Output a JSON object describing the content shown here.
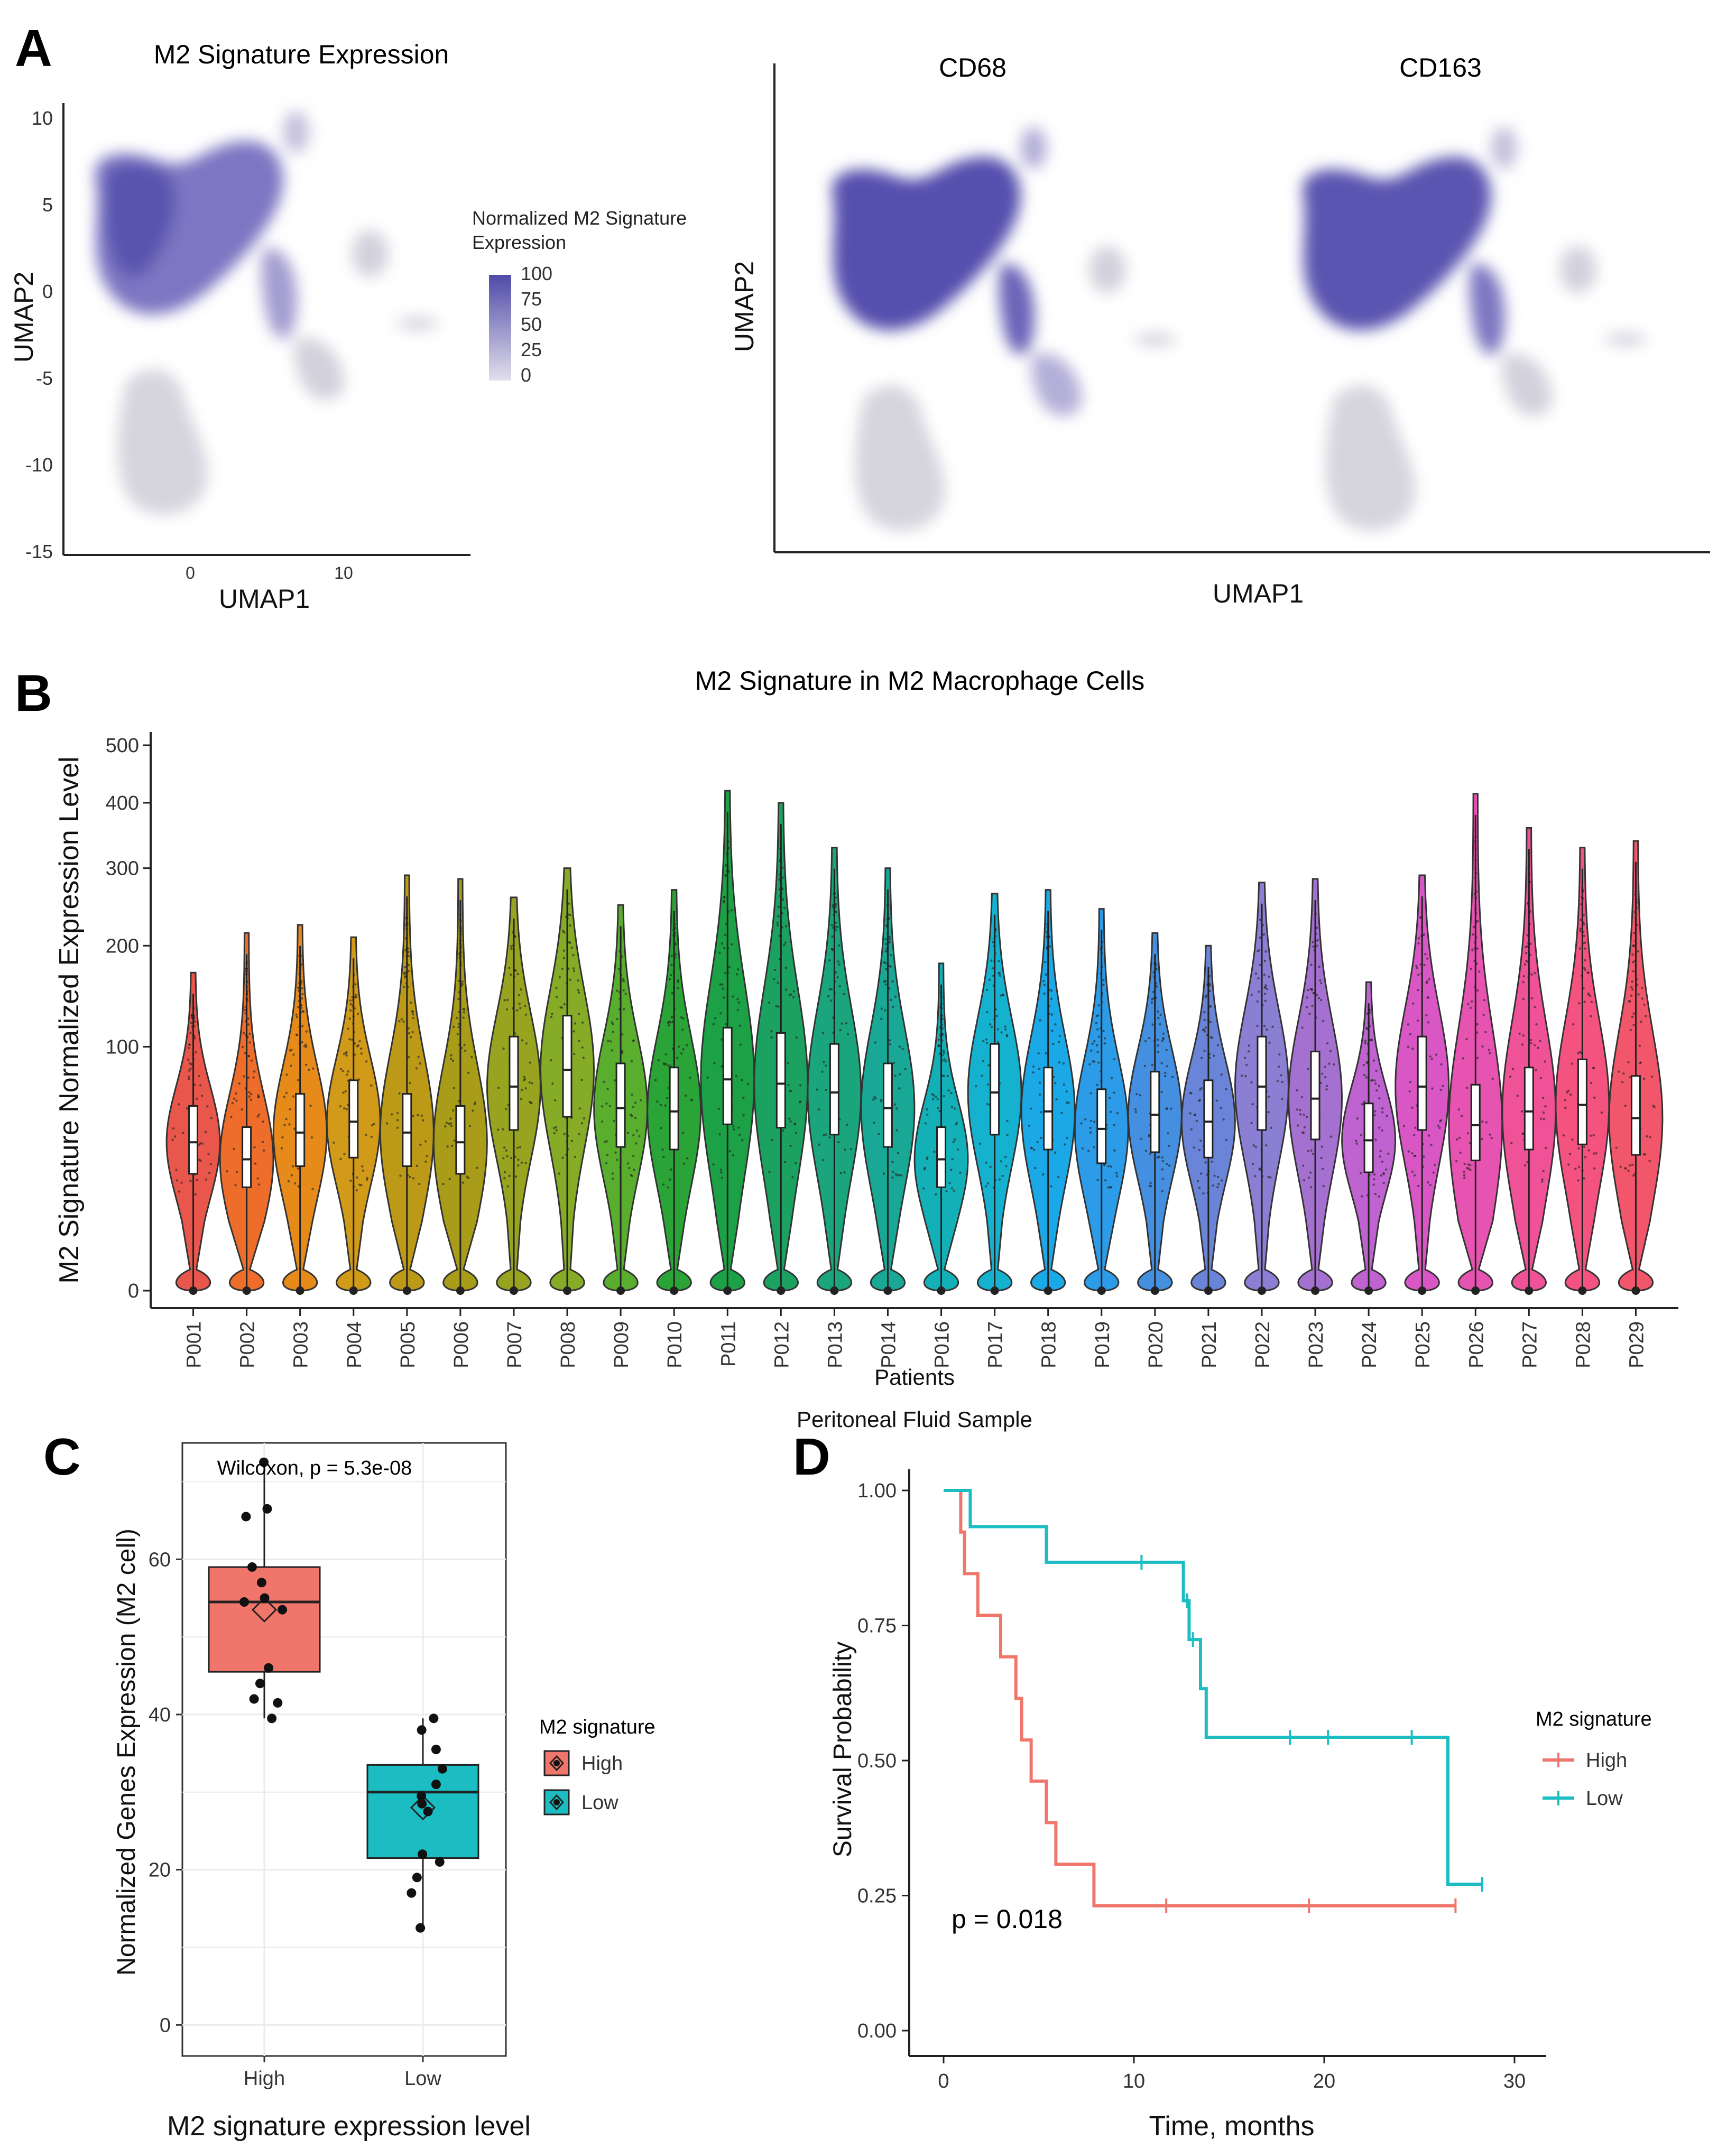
{
  "panel_labels": [
    "A",
    "B",
    "C",
    "D"
  ],
  "chart_data": [
    {
      "id": "A1",
      "type": "scatter",
      "title": "M2 Signature Expression",
      "xlabel": "UMAP1",
      "ylabel": "UMAP2",
      "x_ticks": [
        "0",
        "10"
      ],
      "y_ticks": [
        "10",
        "5",
        "0",
        "-5",
        "-10",
        "-15"
      ],
      "legend_title": "Normalized M2 Signature Expression",
      "legend_ticks": [
        "100",
        "75",
        "50",
        "25",
        "0"
      ],
      "color_low": "#dcd8e8",
      "color_high": "#4e4aa8"
    },
    {
      "id": "A2",
      "type": "scatter",
      "xlabel": "UMAP1",
      "ylabel": "UMAP2",
      "facets": [
        "CD68",
        "CD163"
      ]
    },
    {
      "id": "B",
      "type": "violin",
      "title": "M2 Signature in M2 Macrophage Cells",
      "xlabel": "Patients",
      "caption": "Peritoneal Fluid Sample",
      "ylabel": "M2 Signature Normalized Expression Level",
      "y_scale": "sqrt",
      "y_ticks": [
        "500",
        "400",
        "300",
        "200",
        "100",
        "0"
      ],
      "categories": [
        "P001",
        "P002",
        "P003",
        "P004",
        "P005",
        "P006",
        "P007",
        "P008",
        "P009",
        "P010",
        "P011",
        "P012",
        "P013",
        "P014",
        "P016",
        "P017",
        "P018",
        "P019",
        "P020",
        "P021",
        "P022",
        "P023",
        "P024",
        "P025",
        "P026",
        "P027",
        "P028",
        "P029"
      ],
      "medians": [
        37,
        29,
        42,
        48,
        42,
        37,
        70,
        82,
        56,
        54,
        75,
        72,
        66,
        56,
        29,
        66,
        54,
        44,
        52,
        48,
        70,
        62,
        38,
        70,
        46,
        54,
        58,
        50
      ],
      "max_values": [
        170,
        215,
        225,
        210,
        290,
        285,
        260,
        300,
        250,
        270,
        420,
        400,
        330,
        300,
        180,
        265,
        270,
        245,
        215,
        200,
        280,
        285,
        160,
        290,
        415,
        360,
        330,
        340
      ],
      "colors": [
        "#e8564c",
        "#ee6d2a",
        "#e68a1a",
        "#d19b19",
        "#bc9a18",
        "#a89c18",
        "#98a31f",
        "#86ab26",
        "#5aae2e",
        "#2aa437",
        "#1da146",
        "#1ca260",
        "#1ba57c",
        "#19a896",
        "#14b0b8",
        "#14b2cf",
        "#1aa9e6",
        "#2c9ce8",
        "#448fe0",
        "#6a84d8",
        "#8a7fd2",
        "#a571d0",
        "#be63cf",
        "#d857c5",
        "#e653b0",
        "#ef5297",
        "#f4527f",
        "#f2566a"
      ]
    },
    {
      "id": "C",
      "type": "box",
      "annotation": "Wilcoxon, p = 5.3e-08",
      "xlabel": "M2 signature expression level",
      "ylabel": "Normalized Genes Expression (M2 cell)",
      "categories": [
        "High",
        "Low"
      ],
      "ylim": [
        0,
        72
      ],
      "y_ticks": [
        0,
        20,
        40,
        60
      ],
      "legend_title": "M2 signature",
      "series": [
        {
          "name": "High",
          "color": "#f0766b",
          "q1": 45.5,
          "median": 54.5,
          "q3": 59,
          "whisker_low": 39.5,
          "whisker_high": 72.5,
          "mean": 53.5,
          "points": [
            72.5,
            66.5,
            65.5,
            59,
            57,
            55,
            54.5,
            53.5,
            46,
            44,
            42,
            41.5,
            39.5
          ]
        },
        {
          "name": "Low",
          "color": "#1bbdc2",
          "q1": 21.5,
          "median": 30,
          "q3": 33.5,
          "whisker_low": 12.5,
          "whisker_high": 39.5,
          "mean": 28,
          "points": [
            39.5,
            38,
            35.5,
            33,
            31,
            29.5,
            28.5,
            27.5,
            22,
            21,
            19,
            17,
            12.5
          ]
        }
      ]
    },
    {
      "id": "D",
      "type": "line",
      "subtype": "kaplan-meier",
      "xlabel": "Time, months",
      "ylabel": "Survival Probability",
      "xlim": [
        0,
        30
      ],
      "ylim": [
        0,
        1
      ],
      "x_ticks": [
        0,
        10,
        20,
        30
      ],
      "y_ticks": [
        "0.00",
        "0.25",
        "0.50",
        "0.75",
        "1.00"
      ],
      "annotation": "p = 0.018",
      "legend_title": "M2 signature",
      "series": [
        {
          "name": "High",
          "color": "#f0766b",
          "steps": [
            [
              0,
              1.0
            ],
            [
              0.9,
              0.923
            ],
            [
              1.1,
              0.846
            ],
            [
              1.8,
              0.769
            ],
            [
              3.0,
              0.692
            ],
            [
              3.8,
              0.615
            ],
            [
              4.1,
              0.538
            ],
            [
              4.6,
              0.462
            ],
            [
              5.4,
              0.385
            ],
            [
              5.9,
              0.308
            ],
            [
              7.9,
              0.231
            ],
            [
              26.9,
              0.231
            ]
          ],
          "censored": [
            11.7,
            19.2,
            26.9
          ]
        },
        {
          "name": "Low",
          "color": "#1bbdc2",
          "steps": [
            [
              0,
              1.0
            ],
            [
              1.4,
              0.933
            ],
            [
              5.4,
              0.867
            ],
            [
              10.5,
              0.867
            ],
            [
              12.6,
              0.796
            ],
            [
              12.9,
              0.724
            ],
            [
              13.5,
              0.633
            ],
            [
              13.8,
              0.543
            ],
            [
              26.4,
              0.543
            ],
            [
              26.5,
              0.271
            ],
            [
              28.3,
              0.271
            ]
          ],
          "censored": [
            10.4,
            12.8,
            13.1,
            18.2,
            20.2,
            24.6,
            28.3
          ]
        }
      ]
    }
  ]
}
